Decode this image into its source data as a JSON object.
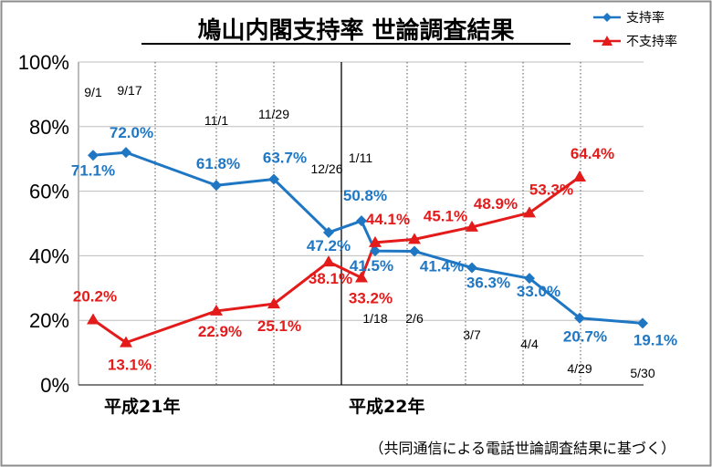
{
  "title": "鳩山内閣支持率 世論調査結果",
  "note": "（共同通信による電話世論調査結果に基づく）",
  "eras": [
    "平成21年",
    "平成22年"
  ],
  "colors": {
    "support": "#1f77c4",
    "nonsupport": "#e31b1b"
  },
  "chart_data": {
    "type": "line",
    "title": "鳩山内閣支持率 世論調査結果",
    "xlabel": "",
    "ylabel": "",
    "ylim": [
      0,
      100
    ],
    "y_ticks": [
      "0%",
      "20%",
      "40%",
      "60%",
      "80%",
      "100%"
    ],
    "grid": true,
    "legend_position": "top-right",
    "categories": [
      "9/1",
      "9/17",
      "11/1",
      "11/29",
      "12/26",
      "1/11",
      "1/18",
      "2/6",
      "3/7",
      "4/4",
      "4/29",
      "5/30"
    ],
    "series": [
      {
        "name": "支持率",
        "values": [
          71.1,
          72.0,
          61.8,
          63.7,
          47.2,
          50.8,
          41.5,
          41.4,
          36.3,
          33.0,
          20.7,
          19.1
        ],
        "labels": [
          "71.1%",
          "72.0%",
          "61.8%",
          "63.7%",
          "47.2%",
          "50.8%",
          "41.5%",
          "41.4%",
          "36.3%",
          "33.0%",
          "20.7%",
          "19.1%"
        ]
      },
      {
        "name": "不支持率",
        "values": [
          20.2,
          13.1,
          22.9,
          25.1,
          38.1,
          33.2,
          44.1,
          45.1,
          48.9,
          53.3,
          64.4,
          null
        ],
        "labels": [
          "20.2%",
          "13.1%",
          "22.9%",
          "25.1%",
          "38.1%",
          "33.2%",
          "44.1%",
          "45.1%",
          "48.9%",
          "53.3%",
          "64.4%",
          ""
        ]
      }
    ]
  }
}
